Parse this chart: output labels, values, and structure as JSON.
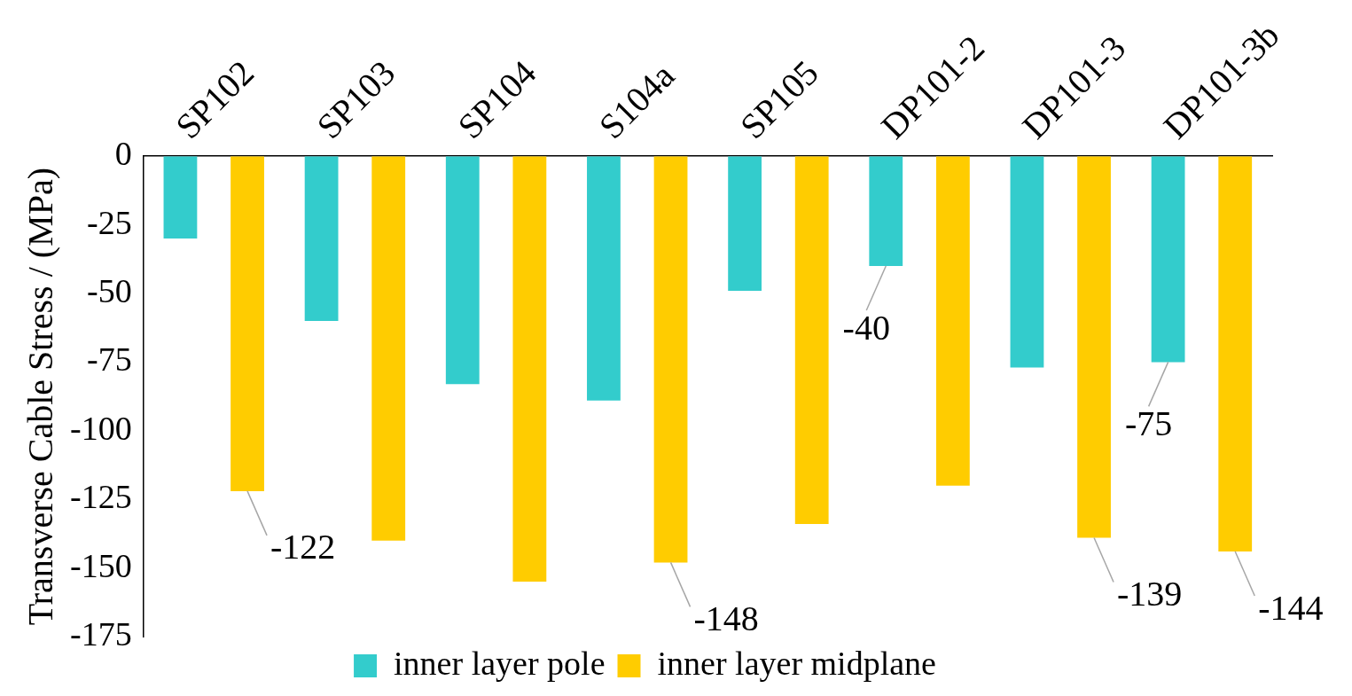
{
  "chart_data": {
    "type": "bar",
    "ylabel": "Transverse Cable Stress / (MPa)",
    "categories": [
      "SP102",
      "SP103",
      "SP104",
      "S104a",
      "SP105",
      "DP101-2",
      "DP101-3",
      "DP101-3b"
    ],
    "series": [
      {
        "name": "inner layer pole",
        "color": "#33cccc",
        "values": [
          -30,
          -60,
          -83,
          -89,
          -49,
          -40,
          -77,
          -75
        ],
        "value_labels": [
          null,
          null,
          null,
          null,
          null,
          "-40",
          null,
          "-75"
        ]
      },
      {
        "name": "inner layer midplane",
        "color": "#ffcc00",
        "values": [
          -122,
          -140,
          -155,
          -148,
          -134,
          -120,
          -139,
          -144
        ],
        "value_labels": [
          "-122",
          null,
          null,
          "-148",
          null,
          null,
          "-139",
          "-144"
        ]
      }
    ],
    "ylim": [
      -175,
      0
    ],
    "yticks": [
      0,
      -25,
      -50,
      -75,
      -100,
      -125,
      -150,
      -175
    ],
    "grid": false,
    "legend": "bottom"
  }
}
